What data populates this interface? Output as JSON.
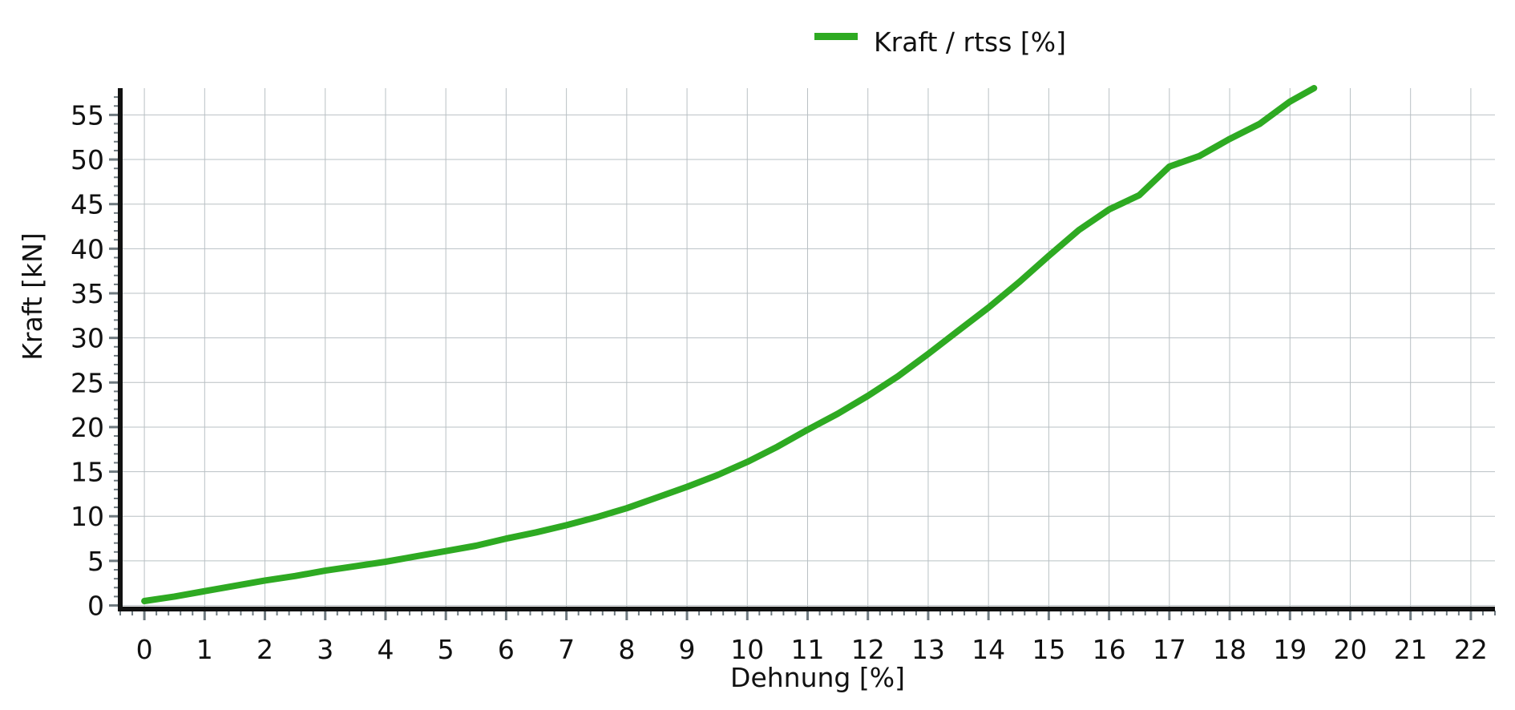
{
  "chart_data": {
    "type": "line",
    "legend": {
      "label": "Kraft / rtss [%]",
      "position": "top-center"
    },
    "xlabel": "Dehnung [%]",
    "ylabel": "Kraft [kN]",
    "xlim": [
      -0.4,
      22.4
    ],
    "ylim": [
      -0.4,
      58
    ],
    "xticks": [
      "0",
      "1",
      "2",
      "3",
      "4",
      "5",
      "6",
      "7",
      "8",
      "9",
      "10",
      "11",
      "12",
      "13",
      "14",
      "15",
      "16",
      "17",
      "18",
      "19",
      "20",
      "21",
      "22"
    ],
    "yticks": [
      "0",
      "5",
      "10",
      "15",
      "20",
      "25",
      "30",
      "35",
      "40",
      "45",
      "50",
      "55"
    ],
    "grid": true,
    "series": [
      {
        "name": "Kraft / rtss [%]",
        "color": "#2eaa22",
        "x": [
          0,
          0.5,
          1,
          1.5,
          2,
          2.5,
          3,
          3.5,
          4,
          4.5,
          5,
          5.5,
          6,
          6.5,
          7,
          7.5,
          8,
          8.5,
          9,
          9.5,
          10,
          10.5,
          11,
          11.5,
          12,
          12.5,
          13,
          13.5,
          14,
          14.5,
          15,
          15.5,
          16,
          16.5,
          17,
          17.5,
          18,
          18.5,
          19,
          19.4
        ],
        "y": [
          0.5,
          1.0,
          1.6,
          2.2,
          2.8,
          3.3,
          3.9,
          4.4,
          4.9,
          5.5,
          6.1,
          6.7,
          7.5,
          8.2,
          9.0,
          9.9,
          10.9,
          12.1,
          13.3,
          14.6,
          16.1,
          17.8,
          19.7,
          21.5,
          23.5,
          25.7,
          28.2,
          30.8,
          33.4,
          36.2,
          39.2,
          42.1,
          44.4,
          46.0,
          49.2,
          50.4,
          52.3,
          54.0,
          56.5,
          58.0
        ]
      }
    ]
  }
}
